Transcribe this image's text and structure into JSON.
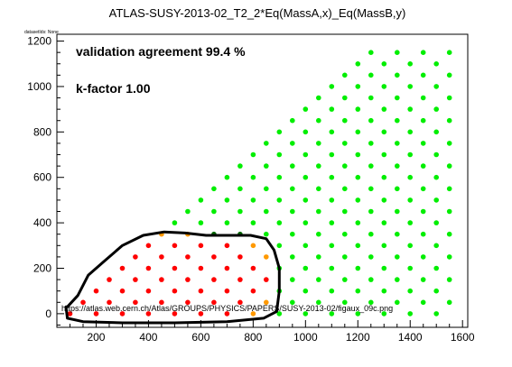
{
  "chart_data": {
    "type": "scatter",
    "title": "ATLAS-SUSY-2013-02_T2_2*Eq(MassA,x)_Eq(MassB,y)",
    "subtitle": "datasetIds: None",
    "annotations": {
      "agreement": "validation agreement 99.4 %",
      "kfactor": "k-factor 1.00",
      "url": "https://atlas.web.cern.ch/Atlas/GROUPS/PHYSICS/PAPERS/SUSY-2013-02/figaux_09c.png"
    },
    "xlim": [
      50,
      1620
    ],
    "ylim": [
      -60,
      1230
    ],
    "x_ticks": [
      200,
      400,
      600,
      800,
      1000,
      1200,
      1400,
      1600
    ],
    "y_ticks": [
      0,
      200,
      400,
      600,
      800,
      1000,
      1200
    ],
    "x_tick_labels": [
      "200",
      "400",
      "600",
      "800",
      "1000",
      "1200",
      "1400",
      "1600"
    ],
    "y_tick_labels": [
      "0",
      "200",
      "400",
      "600",
      "800",
      "1000",
      "1200"
    ],
    "grid": false,
    "colors": {
      "excluded_agree": "#ff0000",
      "allowed_agree": "#00ee00",
      "excluded_disagree": "#ff9900",
      "allowed_disagree": "#006600",
      "contour": "#000000"
    },
    "point_classes": [
      "excluded_agree",
      "allowed_agree",
      "excluded_disagree",
      "allowed_disagree"
    ],
    "grid_rule": {
      "x_step": 50,
      "y_step": 50
    },
    "exclusion_contour": [
      [
        90,
        30
      ],
      [
        130,
        80
      ],
      [
        170,
        170
      ],
      [
        230,
        230
      ],
      [
        300,
        300
      ],
      [
        380,
        345
      ],
      [
        460,
        360
      ],
      [
        540,
        355
      ],
      [
        620,
        345
      ],
      [
        700,
        345
      ],
      [
        790,
        345
      ],
      [
        850,
        330
      ],
      [
        880,
        280
      ],
      [
        900,
        200
      ],
      [
        900,
        100
      ],
      [
        890,
        10
      ],
      [
        840,
        -20
      ],
      [
        700,
        -35
      ],
      [
        500,
        -40
      ],
      [
        300,
        -40
      ],
      [
        150,
        -35
      ],
      [
        90,
        -20
      ],
      [
        85,
        30
      ]
    ]
  }
}
